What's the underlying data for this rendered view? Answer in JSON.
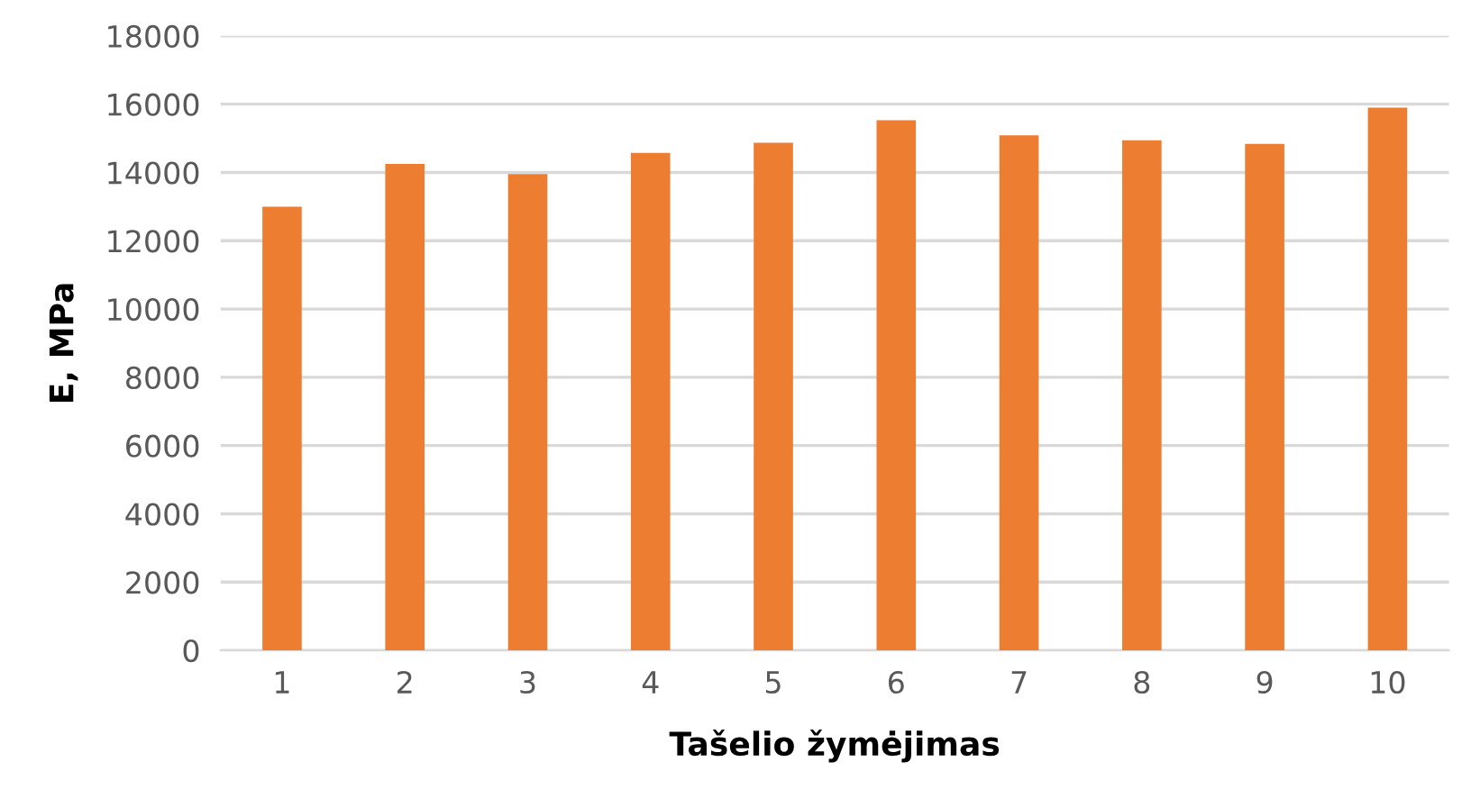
{
  "chart_data": {
    "type": "bar",
    "xlabel": "Tašelio žymėjimas",
    "ylabel": "E, MPa",
    "categories": [
      "1",
      "2",
      "3",
      "4",
      "5",
      "6",
      "7",
      "8",
      "9",
      "10"
    ],
    "values": [
      13000,
      14250,
      13950,
      14570,
      14870,
      15530,
      15090,
      14940,
      14840,
      15900
    ],
    "color": "#ed7d31",
    "ylim": [
      0,
      18000
    ],
    "yticks": [
      0,
      2000,
      4000,
      6000,
      8000,
      10000,
      12000,
      14000,
      16000,
      18000
    ],
    "grid": "y"
  }
}
